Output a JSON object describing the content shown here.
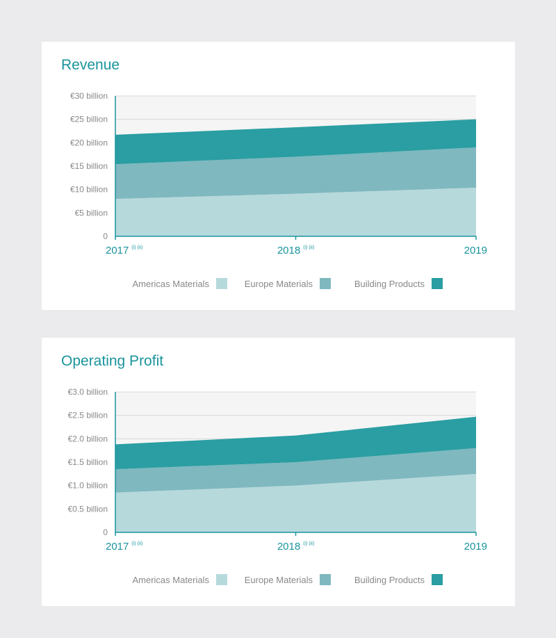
{
  "colors": {
    "americas": "#b6d9dc",
    "europe": "#7fb8bf",
    "building": "#2a9ea2",
    "title": "#1a949b",
    "axis": "#1a949b",
    "label": "#888888",
    "grid": "#d8d8d8",
    "plot_bg": "#f5f5f5"
  },
  "chart_data": [
    {
      "type": "area",
      "stacked": true,
      "title": "Revenue",
      "x": [
        "2017",
        "2018",
        "2019"
      ],
      "x_notes": [
        "(i) (ii)",
        "(i) (ii)",
        ""
      ],
      "yticks": [
        "0",
        "€5 billion",
        "€10 billion",
        "€15 billion",
        "€20 billion",
        "€25 billion",
        "€30 billion"
      ],
      "ylim": [
        0,
        30
      ],
      "grid": true,
      "legend_position": "bottom",
      "series": [
        {
          "name": "Americas Materials",
          "values": [
            8.0,
            9.1,
            10.4
          ]
        },
        {
          "name": "Europe Materials",
          "values": [
            7.4,
            7.9,
            8.6
          ]
        },
        {
          "name": "Building Products",
          "values": [
            6.3,
            6.3,
            6.0
          ]
        }
      ]
    },
    {
      "type": "area",
      "stacked": true,
      "title": "Operating Profit",
      "x": [
        "2017",
        "2018",
        "2019"
      ],
      "x_notes": [
        "(i) (ii)",
        "(i) (ii)",
        ""
      ],
      "yticks": [
        "0",
        "€0.5 billion",
        "€1.0 billion",
        "€1.5 billion",
        "€2.0 billion",
        "€2.5 billion",
        "€3.0 billion"
      ],
      "ylim": [
        0,
        3
      ],
      "grid": true,
      "legend_position": "bottom",
      "series": [
        {
          "name": "Americas Materials",
          "values": [
            0.85,
            1.0,
            1.25
          ]
        },
        {
          "name": "Europe Materials",
          "values": [
            0.5,
            0.5,
            0.55
          ]
        },
        {
          "name": "Building Products",
          "values": [
            0.53,
            0.57,
            0.67
          ]
        }
      ]
    }
  ]
}
